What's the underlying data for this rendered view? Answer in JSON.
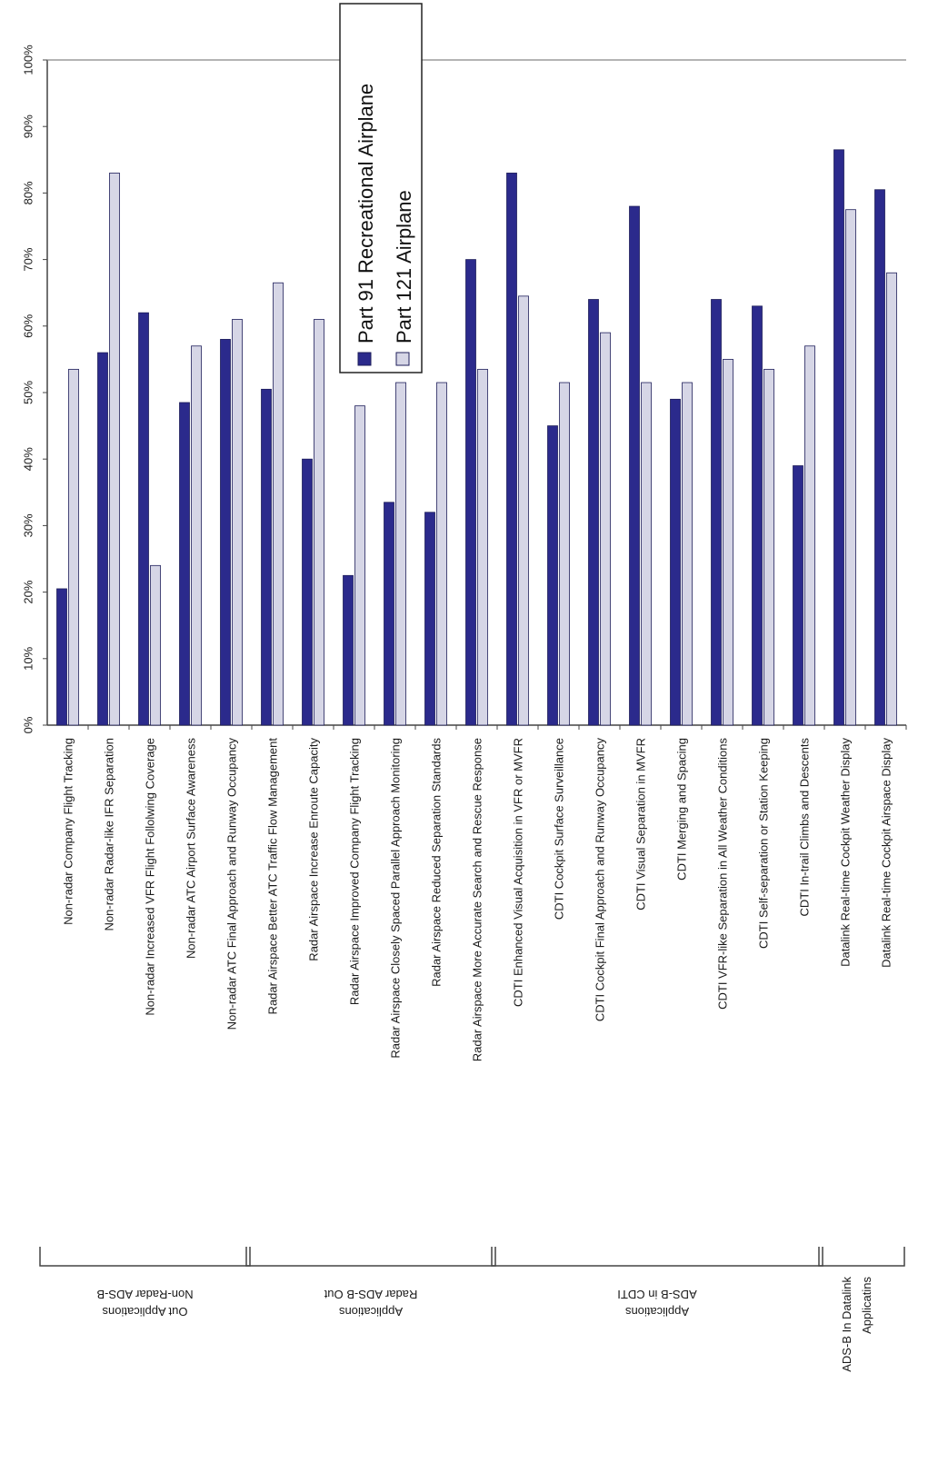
{
  "chart_data": {
    "type": "bar",
    "orientation": "vertical-bars-rotated-labels",
    "ylim": [
      0,
      100
    ],
    "y_ticks": [
      "0%",
      "10%",
      "20%",
      "30%",
      "40%",
      "50%",
      "60%",
      "70%",
      "80%",
      "90%",
      "100%"
    ],
    "grid": false,
    "legend_position": "top-center",
    "categories": [
      "Non-radar Company Flight Tracking",
      "Non-radar Radar-like IFR Separation",
      "Non-radar Increased VFR Flight Follolwing Coverage",
      "Non-radar ATC Airport Surface Awareness",
      "Non-radar ATC Final Approach and Runway Occupancy",
      "Radar Airspace Better ATC Traffic Flow Management",
      "Radar Airspace Increase Enroute Capacity",
      "Radar Airspace Improved Company Flight Tracking",
      "Radar Airspace Closely Spaced Parallel Approach Monitoring",
      "Radar Airspace Reduced Separation Standards",
      "Radar Airspace More Accurate Search and Rescue Response",
      "CDTI Enhanced Visual Acquisition in VFR or MVFR",
      "CDTI Cockpit Surface Surveillance",
      "CDTI Cockpit Final Approach and Runway Occupancy",
      "CDTI Visual Separation in MVFR",
      "CDTI Merging and Spacing",
      "CDTI VFR-like Separation in All Weather Conditions",
      "CDTI Self-separation or Station Keeping",
      "CDTI In-trail Climbs and Descents",
      "Datalink Real-time Cockpit Weather Display",
      "Datalink Real-time Cockpit Airspace Display"
    ],
    "series": [
      {
        "name": "Part 91 Recreational Airplane",
        "color": "#2b2a8c",
        "values": [
          20.5,
          56,
          62,
          48.5,
          58,
          50.5,
          40,
          22.5,
          33.5,
          32,
          70,
          83,
          45,
          64,
          78,
          49,
          64,
          63,
          39,
          86.5,
          80.5
        ]
      },
      {
        "name": "Part 121 Airplane",
        "color": "#d6d6e6",
        "values": [
          53.5,
          83,
          24,
          57,
          61,
          66.5,
          61,
          48,
          51.5,
          51.5,
          53.5,
          64.5,
          51.5,
          59,
          51.5,
          51.5,
          55,
          53.5,
          57,
          77.5,
          68
        ]
      }
    ],
    "groups": [
      {
        "label": "Non-Radar ADS-B Out Applications",
        "lines": [
          "Non-Radar ADS-B",
          "Out Applications"
        ],
        "start": 0,
        "end": 4
      },
      {
        "label": "Radar ADS-B Out Applications",
        "lines": [
          "Radar ADS-B Out",
          "Applications"
        ],
        "start": 5,
        "end": 10
      },
      {
        "label": "ADS-B in CDTI Applications",
        "lines": [
          "ADS-B in CDTI",
          "Applications"
        ],
        "start": 11,
        "end": 18
      },
      {
        "label": "ADS-B In Datalink Applicatins",
        "lines": [
          "ADS-B In Datalink",
          "Applicatins"
        ],
        "start": 19,
        "end": 20
      }
    ]
  }
}
